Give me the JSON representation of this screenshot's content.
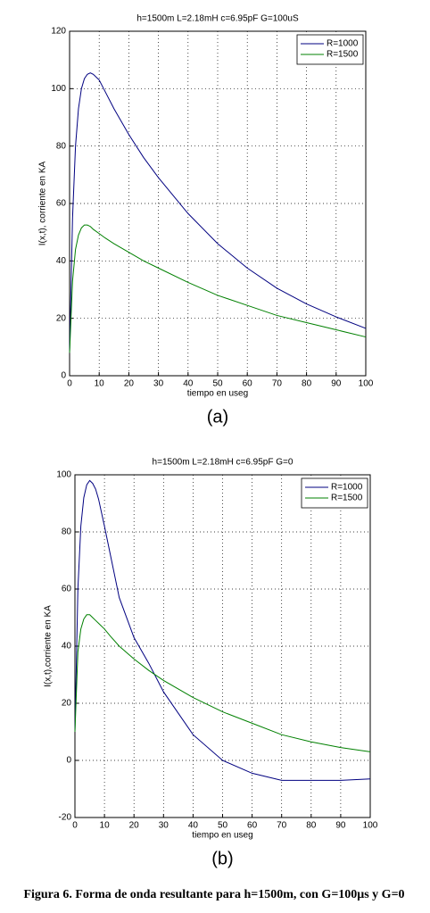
{
  "chart_data": [
    {
      "type": "line",
      "title": "h=1500m L=2.18mH c=6.95pF G=100uS",
      "x_label": "tiempo en useg",
      "y_label": "I(x,t), corriente en KA",
      "panel_label": "(a)",
      "x": [
        0,
        1,
        2,
        3,
        4,
        5,
        6,
        7,
        8,
        10,
        12,
        15,
        20,
        25,
        30,
        40,
        50,
        60,
        70,
        80,
        90,
        100
      ],
      "series": [
        {
          "name": "R=1000",
          "color": "#000080",
          "values": [
            8,
            55,
            80,
            93,
            100,
            103.5,
            105,
            105.5,
            105,
            103,
            99,
            93,
            84,
            76,
            69,
            56.5,
            46,
            37.5,
            30.5,
            25,
            20.5,
            16.5
          ]
        },
        {
          "name": "R=1500",
          "color": "#008000",
          "values": [
            8,
            33,
            44,
            49,
            51.5,
            52.5,
            52.5,
            52,
            51,
            49.5,
            48,
            46,
            43,
            40,
            37.5,
            32.5,
            28,
            24.5,
            21,
            18.5,
            16,
            13.5
          ]
        }
      ],
      "xlim": [
        0,
        100
      ],
      "xticks": [
        0,
        10,
        20,
        30,
        40,
        50,
        60,
        70,
        80,
        90,
        100
      ],
      "ylim": [
        0,
        120
      ],
      "yticks": [
        0,
        20,
        40,
        60,
        80,
        100,
        120
      ],
      "grid": true,
      "legend": "upper right"
    },
    {
      "type": "line",
      "title": "h=1500m L=2.18mH c=6.95pF G=0",
      "x_label": "tiempo en useg",
      "y_label": "I(x,t),corriente en KA",
      "panel_label": "(b)",
      "x": [
        0,
        1,
        2,
        3,
        4,
        5,
        6,
        7,
        8,
        10,
        12,
        15,
        20,
        25,
        30,
        40,
        50,
        60,
        70,
        80,
        90,
        100
      ],
      "series": [
        {
          "name": "R=1000",
          "color": "#000080",
          "values": [
            10,
            60,
            82,
            92,
            96.5,
            98,
            97,
            95,
            91.5,
            82,
            72,
            57,
            43,
            34,
            24,
            9,
            0,
            -4.5,
            -7,
            -7,
            -7,
            -6.5
          ]
        },
        {
          "name": "R=1500",
          "color": "#008000",
          "values": [
            10,
            38,
            46,
            49.5,
            51,
            51,
            50,
            49,
            48,
            46,
            43.5,
            40,
            35.5,
            31.5,
            28,
            22,
            17,
            13,
            9,
            6.5,
            4.5,
            3
          ]
        }
      ],
      "xlim": [
        0,
        100
      ],
      "xticks": [
        0,
        10,
        20,
        30,
        40,
        50,
        60,
        70,
        80,
        90,
        100
      ],
      "ylim": [
        -20,
        100
      ],
      "yticks": [
        -20,
        0,
        20,
        40,
        60,
        80,
        100
      ],
      "grid": true,
      "legend": "upper right"
    }
  ],
  "caption": "Figura 6. Forma de onda resultante para h=1500m, con G=100μs y G=0"
}
